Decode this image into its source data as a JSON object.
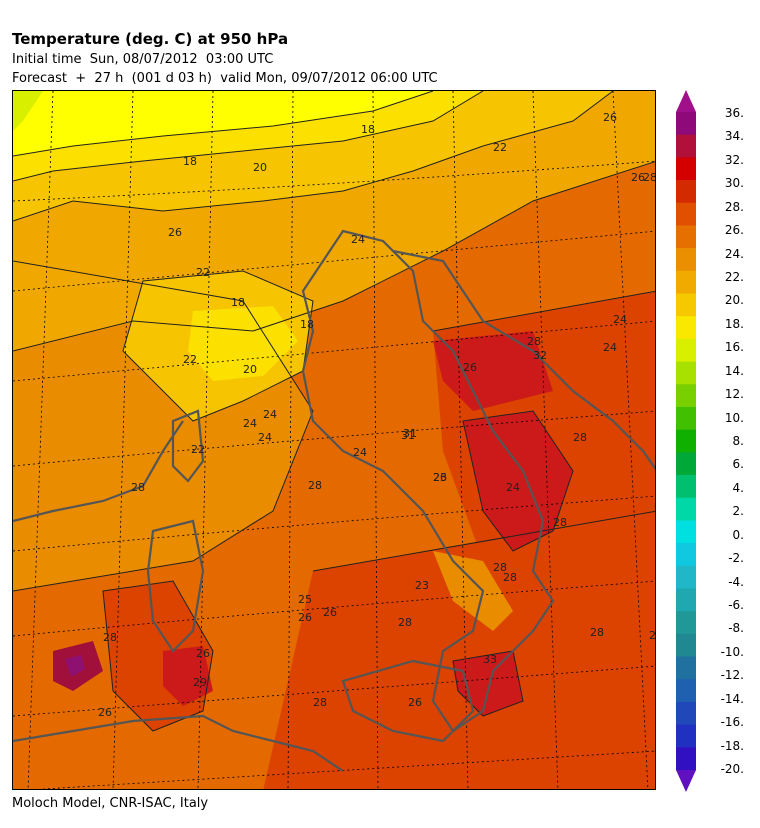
{
  "header": {
    "title": "Temperature (deg. C) at 950 hPa",
    "initial_time": "Initial time  Sun, 08/07/2012  03:00 UTC",
    "forecast": "Forecast  +  27 h  (001 d 03 h)  valid Mon, 09/07/2012 06:00 UTC"
  },
  "footer": {
    "credit": "Moloch Model, CNR-ISAC, Italy"
  },
  "colorbar": {
    "ticks": [
      "36.",
      "34.",
      "32.",
      "30.",
      "28.",
      "26.",
      "24.",
      "22.",
      "20.",
      "18.",
      "16.",
      "14.",
      "12.",
      "10.",
      "8.",
      "6.",
      "4.",
      "2.",
      "0.",
      "-2.",
      "-4.",
      "-6.",
      "-8.",
      "-10.",
      "-12.",
      "-14.",
      "-16.",
      "-18.",
      "-20."
    ],
    "colors": [
      "#8e0a7a",
      "#b0103a",
      "#d40000",
      "#d42a00",
      "#e05000",
      "#e57000",
      "#ea9000",
      "#f0aa00",
      "#f6c800",
      "#fbe800",
      "#d8f000",
      "#a8e000",
      "#78d000",
      "#40c000",
      "#10b000",
      "#00a838",
      "#00c070",
      "#00d8a8",
      "#00e0e0",
      "#10c8e0",
      "#20b8c8",
      "#20a8b0",
      "#209898",
      "#208890",
      "#2070a0",
      "#2060b0",
      "#2048b8",
      "#2030c0",
      "#3010c0"
    ],
    "top_arrow_color": "#a0108a",
    "bottom_arrow_color": "#6010c0"
  },
  "map": {
    "background_colors": {
      "t16": "#d8f000",
      "t18": "#ffff00",
      "t20": "#fbe000",
      "t22": "#f6c400",
      "t24": "#f0a800",
      "t26": "#ea8c00",
      "t28": "#e46a00",
      "t30": "#dc4200",
      "t32": "#cc1a1a",
      "t34": "#a0103a",
      "t36": "#8e1070"
    },
    "contour_labels": [
      "18",
      "18",
      "20",
      "26",
      "24",
      "26",
      "24",
      "26",
      "22",
      "20",
      "18",
      "18",
      "24",
      "22",
      "24",
      "22",
      "28",
      "24",
      "24",
      "28",
      "31",
      "26",
      "23",
      "24",
      "32",
      "26",
      "22",
      "28",
      "28",
      "26",
      "25",
      "26",
      "28",
      "28",
      "28",
      "28",
      "29",
      "26",
      "28",
      "26",
      "28",
      "28",
      "33",
      "26",
      "28",
      "23",
      "28",
      "31",
      "24"
    ]
  }
}
